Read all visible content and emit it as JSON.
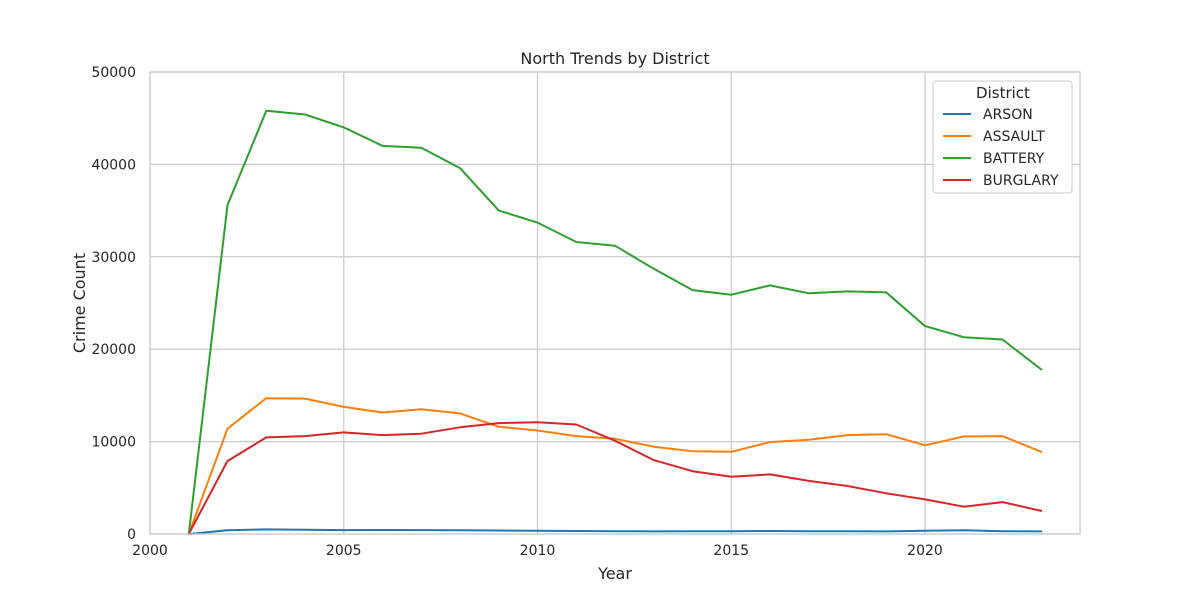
{
  "chart_data": {
    "type": "line",
    "title": "North Trends by District",
    "xlabel": "Year",
    "ylabel": "Crime Count",
    "xlim": [
      2000,
      2024
    ],
    "ylim": [
      0,
      50000
    ],
    "xticks": [
      "2000",
      "2005",
      "2010",
      "2015",
      "2020"
    ],
    "yticks": [
      "0",
      "10000",
      "20000",
      "30000",
      "40000",
      "50000"
    ],
    "grid": true,
    "legend": {
      "title": "District",
      "position": "top-right"
    },
    "x": [
      2001,
      2002,
      2003,
      2004,
      2005,
      2006,
      2007,
      2008,
      2009,
      2010,
      2011,
      2012,
      2013,
      2014,
      2015,
      2016,
      2017,
      2018,
      2019,
      2020,
      2021,
      2022,
      2023
    ],
    "series": [
      {
        "name": "ARSON",
        "color": "#1f77b4",
        "values": [
          0,
          400,
          500,
          450,
          420,
          430,
          420,
          400,
          380,
          350,
          330,
          300,
          280,
          290,
          300,
          320,
          290,
          300,
          280,
          350,
          400,
          300,
          280
        ]
      },
      {
        "name": "ASSAULT",
        "color": "#ff7f0e",
        "values": [
          0,
          11400,
          14700,
          14650,
          13750,
          13150,
          13500,
          13050,
          11600,
          11200,
          10600,
          10300,
          9450,
          8950,
          8900,
          9950,
          10200,
          10700,
          10800,
          9600,
          10550,
          10600,
          8900
        ]
      },
      {
        "name": "BATTERY",
        "color": "#2ca02c",
        "values": [
          0,
          35600,
          45800,
          45400,
          44000,
          42000,
          41800,
          39600,
          35000,
          33700,
          31600,
          31200,
          28700,
          26400,
          25900,
          26900,
          26050,
          26250,
          26150,
          22500,
          21300,
          21050,
          17800
        ]
      },
      {
        "name": "BURGLARY",
        "color": "#d62728",
        "values": [
          0,
          7900,
          10450,
          10600,
          11000,
          10700,
          10850,
          11550,
          12000,
          12100,
          11850,
          10100,
          8000,
          6800,
          6200,
          6450,
          5750,
          5200,
          4400,
          3750,
          2950,
          3450,
          2500
        ]
      }
    ]
  }
}
